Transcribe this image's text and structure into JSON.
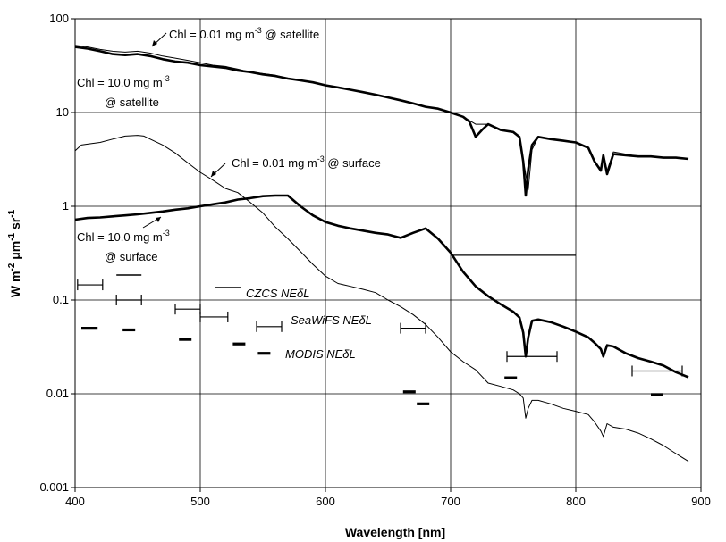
{
  "chart_data": {
    "type": "line",
    "xlabel": "Wavelength [nm]",
    "ylabel_parts": [
      "W m",
      "-2",
      " μm",
      "-1",
      " sr",
      "-1"
    ],
    "xlim": [
      400,
      900
    ],
    "ylim": [
      0.001,
      100
    ],
    "yscale": "log",
    "grid": true,
    "x_ticks": [
      400,
      500,
      600,
      700,
      800,
      900
    ],
    "x_tick_labels": [
      "400",
      "500",
      "600",
      "700",
      "800",
      "900"
    ],
    "y_ticks": [
      0.001,
      0.01,
      0.1,
      1,
      10,
      100
    ],
    "y_tick_labels": [
      "0.001",
      "0.01",
      "0.1",
      "1",
      "10",
      "100"
    ],
    "series": [
      {
        "style": "thin",
        "x": [
          400,
          410,
          420,
          430,
          440,
          450,
          460,
          470,
          480,
          490,
          500,
          510,
          520,
          530,
          540,
          550,
          560,
          570,
          580,
          590,
          600,
          610,
          620,
          630,
          640,
          650,
          660,
          670,
          680,
          690,
          700,
          710,
          720,
          730,
          740,
          750,
          755,
          760,
          762,
          765,
          770,
          780,
          790,
          800,
          810,
          815,
          820,
          822,
          825,
          830,
          840,
          850,
          860,
          870,
          880,
          890
        ],
        "y": [
          52,
          50,
          47,
          45,
          44,
          45,
          43,
          40,
          38,
          36,
          34,
          32,
          31,
          29,
          27,
          26,
          25,
          23,
          22,
          21,
          19.5,
          18.5,
          17.5,
          16.5,
          15.5,
          14.5,
          13.5,
          12.5,
          11.5,
          11,
          10,
          9,
          7.5,
          7.5,
          6.5,
          6.2,
          5.5,
          2.2,
          1.5,
          4,
          5.5,
          5.2,
          5,
          4.8,
          4.2,
          3,
          2.5,
          3.6,
          2.4,
          3.8,
          3.6,
          3.4,
          3.4,
          3.3,
          3.3,
          3.2
        ]
      },
      {
        "style": "thick",
        "x": [
          400,
          410,
          420,
          430,
          440,
          450,
          460,
          470,
          480,
          490,
          500,
          510,
          520,
          530,
          540,
          550,
          560,
          570,
          580,
          590,
          600,
          610,
          620,
          630,
          640,
          650,
          660,
          670,
          680,
          690,
          700,
          710,
          715,
          720,
          725,
          730,
          740,
          750,
          755,
          758,
          760,
          762,
          765,
          770,
          780,
          790,
          800,
          810,
          815,
          820,
          822,
          825,
          830,
          840,
          850,
          860,
          870,
          880,
          890
        ],
        "y": [
          50,
          48,
          45,
          42,
          41,
          42,
          40,
          37,
          35,
          34,
          32,
          31,
          30,
          28,
          27,
          25.5,
          24.5,
          23,
          22,
          21,
          19.5,
          18.5,
          17.5,
          16.5,
          15.5,
          14.5,
          13.5,
          12.5,
          11.5,
          11,
          10,
          9,
          8,
          5.5,
          6.5,
          7.5,
          6.5,
          6.2,
          5.5,
          3,
          1.3,
          2.5,
          4.5,
          5.5,
          5.2,
          5,
          4.8,
          4.2,
          3,
          2.4,
          3.5,
          2.2,
          3.6,
          3.5,
          3.4,
          3.4,
          3.3,
          3.3,
          3.2
        ]
      },
      {
        "style": "thin",
        "x": [
          400,
          405,
          410,
          420,
          430,
          440,
          450,
          455,
          460,
          470,
          480,
          490,
          500,
          510,
          520,
          530,
          540,
          550,
          560,
          570,
          580,
          590,
          600,
          610,
          620,
          630,
          640,
          650,
          660,
          670,
          680,
          690,
          700,
          710,
          720,
          730,
          740,
          750,
          755,
          758,
          760,
          762,
          765,
          770,
          780,
          790,
          800,
          810,
          815,
          820,
          822,
          825,
          830,
          840,
          850,
          860,
          870,
          880,
          890
        ],
        "y": [
          3.9,
          4.5,
          4.6,
          4.8,
          5.2,
          5.6,
          5.7,
          5.6,
          5.2,
          4.5,
          3.7,
          2.9,
          2.3,
          1.9,
          1.55,
          1.4,
          1.1,
          0.85,
          0.6,
          0.45,
          0.33,
          0.24,
          0.18,
          0.15,
          0.14,
          0.13,
          0.12,
          0.1,
          0.085,
          0.07,
          0.055,
          0.04,
          0.028,
          0.022,
          0.018,
          0.013,
          0.012,
          0.011,
          0.01,
          0.009,
          0.0055,
          0.007,
          0.0085,
          0.0085,
          0.0078,
          0.007,
          0.0065,
          0.006,
          0.005,
          0.004,
          0.0035,
          0.0048,
          0.0044,
          0.0042,
          0.0038,
          0.0033,
          0.0028,
          0.0023,
          0.0019
        ]
      },
      {
        "style": "thick",
        "x": [
          400,
          410,
          420,
          430,
          440,
          450,
          460,
          470,
          480,
          490,
          500,
          510,
          520,
          530,
          540,
          550,
          560,
          570,
          580,
          590,
          600,
          610,
          620,
          630,
          640,
          650,
          660,
          670,
          680,
          690,
          700,
          710,
          720,
          730,
          740,
          750,
          755,
          758,
          760,
          762,
          765,
          770,
          780,
          790,
          800,
          810,
          815,
          820,
          822,
          825,
          830,
          840,
          850,
          860,
          870,
          880,
          890
        ],
        "y": [
          0.72,
          0.75,
          0.76,
          0.78,
          0.8,
          0.82,
          0.85,
          0.88,
          0.92,
          0.95,
          1.0,
          1.05,
          1.1,
          1.18,
          1.22,
          1.28,
          1.3,
          1.3,
          1.0,
          0.8,
          0.68,
          0.62,
          0.58,
          0.55,
          0.52,
          0.5,
          0.46,
          0.52,
          0.58,
          0.45,
          0.32,
          0.2,
          0.14,
          0.11,
          0.09,
          0.075,
          0.065,
          0.045,
          0.025,
          0.04,
          0.06,
          0.062,
          0.058,
          0.052,
          0.046,
          0.04,
          0.035,
          0.03,
          0.025,
          0.033,
          0.032,
          0.027,
          0.024,
          0.022,
          0.02,
          0.017,
          0.015
        ]
      }
    ],
    "reference_line": {
      "x": [
        700,
        800
      ],
      "y": 0.3
    },
    "annotations": {
      "sat_001": "Chl = 0.01 mg m",
      "sat_001_sup": "-3",
      "sat_001_tail": " @ satellite",
      "sat_10_line1": "Chl = 10.0 mg m",
      "sat_10_line1_sup": "-3",
      "sat_10_line2": "@ satellite",
      "surf_001": "Chl = 0.01 mg m",
      "surf_001_sup": "-3",
      "surf_001_tail": " @ surface",
      "surf_10_line1": "Chl = 10.0 mg m",
      "surf_10_line1_sup": "-3",
      "surf_10_line2": "@ surface",
      "czcs": "CZCS NEδL",
      "seawifs": "SeaWiFS NEδL",
      "modis": "MODIS NEδL"
    },
    "czcs_bands": [
      {
        "x1": 433,
        "x2": 453,
        "y": 0.185
      }
    ],
    "seawifs_bands": [
      {
        "x1": 402,
        "x2": 422,
        "y": 0.145
      },
      {
        "x1": 433,
        "x2": 453,
        "y": 0.1
      },
      {
        "x1": 480,
        "x2": 500,
        "y": 0.08
      },
      {
        "x1": 500,
        "x2": 522,
        "y": 0.066
      },
      {
        "x1": 545,
        "x2": 565,
        "y": 0.052
      },
      {
        "x1": 660,
        "x2": 680,
        "y": 0.05
      },
      {
        "x1": 745,
        "x2": 785,
        "y": 0.025
      },
      {
        "x1": 845,
        "x2": 885,
        "y": 0.0175
      }
    ],
    "modis_bands": [
      {
        "x1": 405,
        "x2": 418,
        "y": 0.05
      },
      {
        "x1": 438,
        "x2": 448,
        "y": 0.048
      },
      {
        "x1": 483,
        "x2": 493,
        "y": 0.038
      },
      {
        "x1": 526,
        "x2": 536,
        "y": 0.034
      },
      {
        "x1": 546,
        "x2": 556,
        "y": 0.027
      },
      {
        "x1": 662,
        "x2": 672,
        "y": 0.0105
      },
      {
        "x1": 673,
        "x2": 683,
        "y": 0.0078
      },
      {
        "x1": 743,
        "x2": 753,
        "y": 0.0148
      },
      {
        "x1": 860,
        "x2": 870,
        "y": 0.0098
      }
    ]
  }
}
